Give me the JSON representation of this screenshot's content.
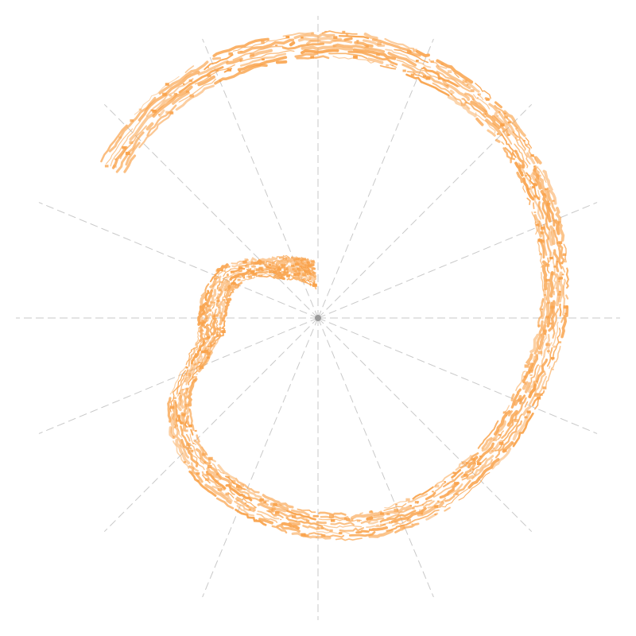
{
  "chart_data": {
    "type": "polar-scatter",
    "title": "",
    "grid": true,
    "radial_axis_count": 16,
    "marker_color": "#f9a24a",
    "center_color": "#9a9a9a",
    "series": [
      {
        "points": [
          {
            "angle": 306,
            "radius": 0.89
          },
          {
            "angle": 322,
            "radius": 0.92
          },
          {
            "angle": 338,
            "radius": 0.94
          },
          {
            "angle": 354,
            "radius": 0.95
          },
          {
            "angle": 8,
            "radius": 0.96
          },
          {
            "angle": 22,
            "radius": 0.95
          },
          {
            "angle": 34,
            "radius": 0.94
          },
          {
            "angle": 44,
            "radius": 0.93
          },
          {
            "angle": 52,
            "radius": 0.91
          },
          {
            "angle": 60,
            "radius": 0.89
          },
          {
            "angle": 70,
            "radius": 0.86
          },
          {
            "angle": 80,
            "radius": 0.84
          },
          {
            "angle": 90,
            "radius": 0.82
          },
          {
            "angle": 100,
            "radius": 0.8
          },
          {
            "angle": 110,
            "radius": 0.78
          },
          {
            "angle": 122,
            "radius": 0.77
          },
          {
            "angle": 134,
            "radius": 0.76
          },
          {
            "angle": 146,
            "radius": 0.76
          },
          {
            "angle": 158,
            "radius": 0.75
          },
          {
            "angle": 170,
            "radius": 0.74
          },
          {
            "angle": 182,
            "radius": 0.72
          },
          {
            "angle": 194,
            "radius": 0.7
          },
          {
            "angle": 206,
            "radius": 0.68
          },
          {
            "angle": 218,
            "radius": 0.66
          },
          {
            "angle": 230,
            "radius": 0.62
          },
          {
            "angle": 240,
            "radius": 0.56
          },
          {
            "angle": 250,
            "radius": 0.45
          },
          {
            "angle": 260,
            "radius": 0.38
          },
          {
            "angle": 272,
            "radius": 0.37
          },
          {
            "angle": 284,
            "radius": 0.36
          },
          {
            "angle": 296,
            "radius": 0.34
          },
          {
            "angle": 308,
            "radius": 0.28
          },
          {
            "angle": 320,
            "radius": 0.22
          },
          {
            "angle": 332,
            "radius": 0.2
          },
          {
            "angle": 344,
            "radius": 0.17
          },
          {
            "angle": 356,
            "radius": 0.15
          }
        ]
      }
    ]
  }
}
